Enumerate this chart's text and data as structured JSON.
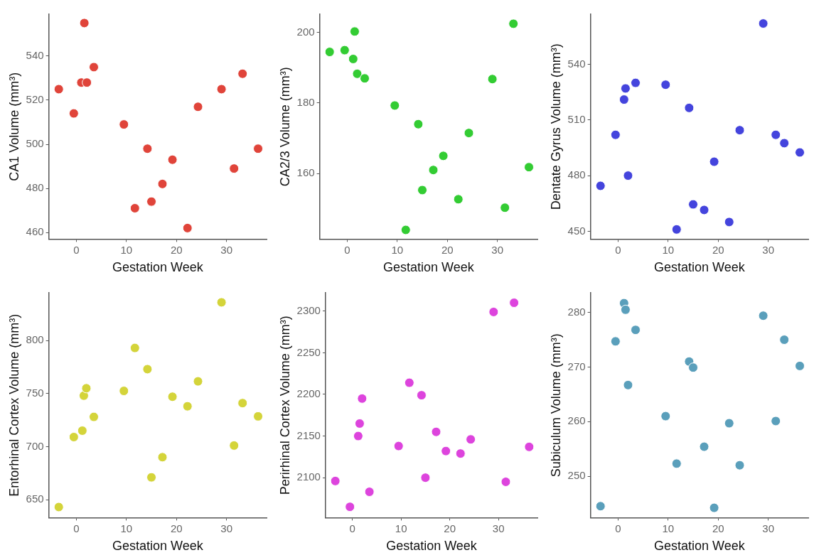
{
  "chart_data": [
    {
      "type": "scatter",
      "xlabel": "Gestation Week",
      "ylabel": "CA1 Volume (mm³)",
      "x": [
        -3.5,
        -0.5,
        1.0,
        1.6,
        2.1,
        3.5,
        9.5,
        11.7,
        14.2,
        15,
        17.2,
        19.2,
        22.2,
        24.3,
        29,
        31.5,
        33.2,
        36.3
      ],
      "series": [
        {
          "color": "#e0443a",
          "values": [
            525,
            514,
            528,
            555,
            528,
            535,
            509,
            471,
            498,
            474,
            482,
            493,
            462,
            517,
            525,
            489,
            532,
            498
          ]
        }
      ],
      "xlim": [
        -5.5,
        38
      ],
      "xticks": [
        0,
        10,
        20,
        30
      ],
      "ylim": [
        457,
        559
      ],
      "yticks": [
        460,
        480,
        500,
        520,
        540
      ],
      "grid": false,
      "legend": false,
      "marker": "circle"
    },
    {
      "type": "scatter",
      "xlabel": "Gestation Week",
      "ylabel": "CA2/3 Volume (mm³)",
      "x": [
        -3.5,
        -0.5,
        1.2,
        1.5,
        2,
        3.5,
        9.5,
        11.7,
        14.2,
        15,
        17.2,
        19.2,
        22.2,
        24.3,
        29,
        31.5,
        33.2,
        36.3
      ],
      "series": [
        {
          "color": "#33cc33",
          "values": [
            194.5,
            195,
            192.5,
            200.3,
            188.3,
            187,
            179.3,
            144,
            174,
            155.3,
            161,
            165,
            152.7,
            171.5,
            186.8,
            150.3,
            202.5,
            161.8
          ]
        }
      ],
      "xlim": [
        -5.5,
        38
      ],
      "xticks": [
        0,
        10,
        20,
        30
      ],
      "ylim": [
        141.4,
        205.2
      ],
      "yticks": [
        160,
        180,
        200
      ],
      "grid": false,
      "legend": false,
      "marker": "circle"
    },
    {
      "type": "scatter",
      "xlabel": "Gestation Week",
      "ylabel": "Dentate Gyrus Volume (mm³)",
      "x": [
        -3.5,
        -0.5,
        1.2,
        1.5,
        2,
        3.5,
        9.5,
        11.7,
        14.2,
        15,
        17.2,
        19.2,
        22.2,
        24.3,
        29,
        31.5,
        33.2,
        36.3
      ],
      "series": [
        {
          "color": "#4444dd",
          "values": [
            474.5,
            502,
            521,
            527,
            480,
            530,
            529,
            451,
            516.5,
            464.5,
            461.5,
            487.5,
            455,
            504.5,
            562,
            502,
            497.5,
            492.5
          ]
        }
      ],
      "xlim": [
        -5.5,
        38
      ],
      "xticks": [
        0,
        10,
        20,
        30
      ],
      "ylim": [
        445.8,
        567
      ],
      "yticks": [
        450,
        480,
        510,
        540
      ],
      "grid": false,
      "legend": false,
      "marker": "circle"
    },
    {
      "type": "scatter",
      "xlabel": "Gestation Week",
      "ylabel": "Entorhinal Cortex Volume (mm³)",
      "x": [
        -3.5,
        -0.5,
        1.2,
        1.5,
        2,
        3.5,
        9.5,
        11.7,
        14.2,
        15,
        17.2,
        19.2,
        22.2,
        24.3,
        29,
        31.5,
        33.2,
        36.3
      ],
      "series": [
        {
          "color": "#d4d43a",
          "values": [
            643,
            709,
            715,
            748,
            755,
            728,
            752.5,
            793,
            773,
            671,
            690,
            747,
            738,
            761.5,
            836,
            701,
            741,
            728.5
          ]
        }
      ],
      "xlim": [
        -5.5,
        38
      ],
      "xticks": [
        0,
        10,
        20,
        30
      ],
      "ylim": [
        633,
        845
      ],
      "yticks": [
        650,
        700,
        750,
        800
      ],
      "grid": false,
      "legend": false,
      "marker": "circle"
    },
    {
      "type": "scatter",
      "xlabel": "Gestation Week",
      "ylabel": "Perirhinal Cortex Volume (mm³)",
      "x": [
        -3.5,
        -0.5,
        1.2,
        1.5,
        2,
        3.5,
        9.5,
        11.7,
        14.2,
        15,
        17.2,
        19.2,
        22.2,
        24.3,
        29,
        31.5,
        33.2,
        36.3
      ],
      "series": [
        {
          "color": "#dd44dd",
          "values": [
            2096,
            2065,
            2150,
            2165,
            2195,
            2083,
            2138,
            2214,
            2199,
            2100,
            2155,
            2132,
            2129,
            2146,
            2299,
            2095,
            2310,
            2137
          ]
        }
      ],
      "xlim": [
        -5.5,
        38
      ],
      "xticks": [
        0,
        10,
        20,
        30
      ],
      "ylim": [
        2052,
        2322
      ],
      "yticks": [
        2100,
        2150,
        2200,
        2250,
        2300
      ],
      "grid": false,
      "legend": false,
      "marker": "circle"
    },
    {
      "type": "scatter",
      "xlabel": "Gestation Week",
      "ylabel": "Subiculum Volume (mm³)",
      "x": [
        -3.5,
        -0.5,
        1.2,
        1.5,
        2,
        3.5,
        9.5,
        11.7,
        14.2,
        15,
        17.2,
        19.2,
        22.2,
        24.3,
        29,
        31.5,
        33.2,
        36.3
      ],
      "series": [
        {
          "color": "#5a9fbb",
          "values": [
            244.5,
            274.7,
            281.7,
            280.5,
            266.7,
            276.8,
            261,
            252.3,
            271,
            269.9,
            255.4,
            244.2,
            259.7,
            252,
            279.4,
            260.1,
            275,
            270.2
          ]
        }
      ],
      "xlim": [
        -5.5,
        38
      ],
      "xticks": [
        0,
        10,
        20,
        30
      ],
      "ylim": [
        242.4,
        283.6
      ],
      "yticks": [
        250,
        260,
        270,
        280
      ],
      "grid": false,
      "legend": false,
      "marker": "circle"
    }
  ]
}
